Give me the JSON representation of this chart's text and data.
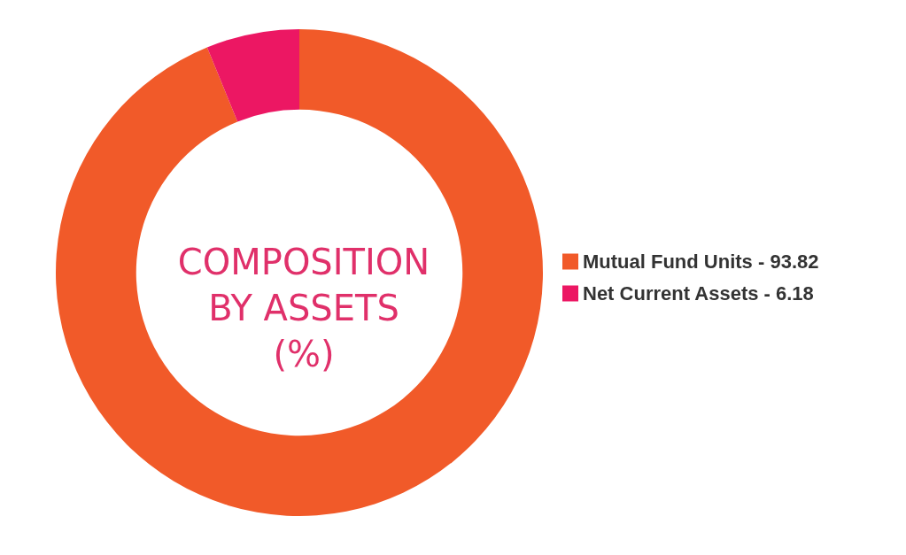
{
  "chart_data": {
    "type": "donut",
    "title": "COMPOSITION\nBY ASSETS\n(%)",
    "categories": [
      "Mutual Fund Units - 93.82",
      "Net Current Assets - 6.18"
    ],
    "values": [
      93.82,
      6.18
    ],
    "colors": [
      "#f15a29",
      "#ec1763"
    ],
    "legend": "right"
  }
}
